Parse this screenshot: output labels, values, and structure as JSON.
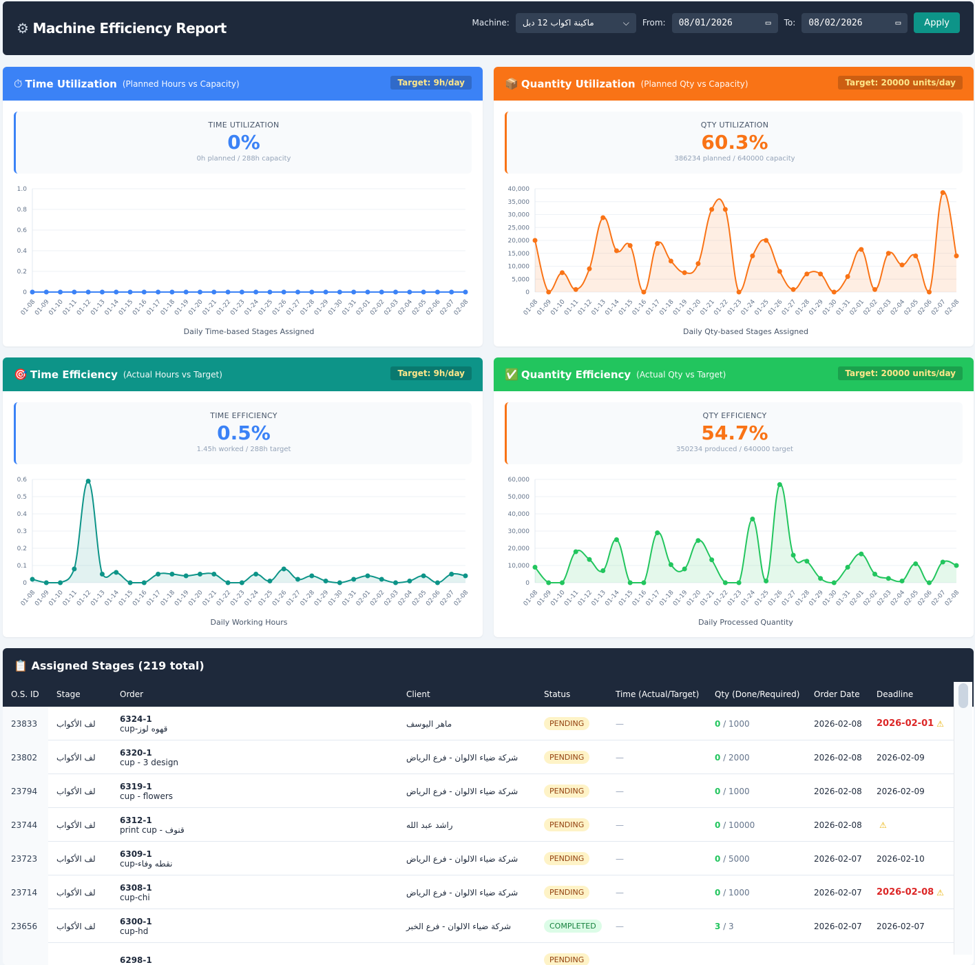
{
  "header": {
    "title": "Machine Efficiency Report",
    "icon": "gear-icon",
    "machine_label": "Machine:",
    "machine_value": "ماكينة اكواب 12 دبل",
    "from_label": "From:",
    "from_value": "08/01/2026",
    "to_label": "To:",
    "to_value": "08/02/2026",
    "apply_label": "Apply"
  },
  "cards": [
    {
      "title": "Time Utilization",
      "subtitle": "(Planned Hours vs Capacity)",
      "target": "Target: 9h/day",
      "color": "#3b82f6",
      "stat_label": "TIME UTILIZATION",
      "stat_value": "0%",
      "stat_detail": "0h planned / 288h capacity",
      "icon": "stopwatch-icon"
    },
    {
      "title": "Quantity Utilization",
      "subtitle": "(Planned Qty vs Capacity)",
      "target": "Target: 20000 units/day",
      "color": "#f97316",
      "stat_label": "QTY UTILIZATION",
      "stat_value": "60.3%",
      "stat_detail": "386234 planned / 640000 capacity",
      "icon": "package-icon"
    },
    {
      "title": "Time Efficiency",
      "subtitle": "(Actual Hours vs Target)",
      "target": "Target: 9h/day",
      "color": "#0d9488",
      "stat_label": "TIME EFFICIENCY",
      "stat_value": "0.5%",
      "stat_detail": "1.45h worked / 288h target",
      "icon": "target-icon"
    },
    {
      "title": "Quantity Efficiency",
      "subtitle": "(Actual Qty vs Target)",
      "target": "Target: 20000 units/day",
      "color": "#22c55e",
      "stat_label": "QTY EFFICIENCY",
      "stat_value": "54.7%",
      "stat_detail": "350234 produced / 640000 target",
      "icon": "check-icon"
    }
  ],
  "chart_data": [
    {
      "type": "line",
      "xlabel": "Daily Time-based Stages Assigned",
      "color": "#3b82f6",
      "ylim": [
        0,
        1
      ],
      "yticks": [
        0,
        0.2,
        0.4,
        0.6,
        0.8,
        1.0
      ],
      "ytick_labels": [
        "0",
        "0.2",
        "0.4",
        "0.6",
        "0.8",
        "1.0"
      ],
      "grid": true,
      "x": [
        "01-08",
        "01-09",
        "01-10",
        "01-11",
        "01-12",
        "01-13",
        "01-14",
        "01-15",
        "01-16",
        "01-17",
        "01-18",
        "01-19",
        "01-20",
        "01-21",
        "01-22",
        "01-23",
        "01-24",
        "01-25",
        "01-26",
        "01-27",
        "01-28",
        "01-29",
        "01-30",
        "01-31",
        "02-01",
        "02-02",
        "02-03",
        "02-04",
        "02-05",
        "02-06",
        "02-07",
        "02-08"
      ],
      "values": [
        0,
        0,
        0,
        0,
        0,
        0,
        0,
        0,
        0,
        0,
        0,
        0,
        0,
        0,
        0,
        0,
        0,
        0,
        0,
        0,
        0,
        0,
        0,
        0,
        0,
        0,
        0,
        0,
        0,
        0,
        0,
        0
      ]
    },
    {
      "type": "area",
      "xlabel": "Daily Qty-based Stages Assigned",
      "color": "#f97316",
      "ylim": [
        0,
        40000
      ],
      "yticks": [
        0,
        5000,
        10000,
        15000,
        20000,
        25000,
        30000,
        35000,
        40000
      ],
      "ytick_labels": [
        "0",
        "5,000",
        "10,000",
        "15,000",
        "20,000",
        "25,000",
        "30,000",
        "35,000",
        "40,000"
      ],
      "grid": true,
      "x": [
        "01-08",
        "01-09",
        "01-10",
        "01-11",
        "01-12",
        "01-13",
        "01-14",
        "01-15",
        "01-16",
        "01-17",
        "01-18",
        "01-19",
        "01-20",
        "01-21",
        "01-22",
        "01-23",
        "01-24",
        "01-25",
        "01-26",
        "01-27",
        "01-28",
        "01-29",
        "01-30",
        "01-31",
        "02-01",
        "02-02",
        "02-03",
        "02-04",
        "02-05",
        "02-06",
        "02-07",
        "02-08"
      ],
      "values": [
        20000,
        0,
        7500,
        1000,
        9000,
        28800,
        16000,
        18000,
        0,
        18800,
        12000,
        7500,
        11000,
        32000,
        32000,
        0,
        14000,
        20000,
        8000,
        1000,
        7000,
        7000,
        0,
        6000,
        16500,
        1000,
        15000,
        10500,
        14000,
        0,
        38500,
        14000
      ]
    },
    {
      "type": "area",
      "xlabel": "Daily Working Hours",
      "color": "#0d9488",
      "ylim": [
        0,
        0.6
      ],
      "yticks": [
        0,
        0.1,
        0.2,
        0.3,
        0.4,
        0.5,
        0.6
      ],
      "ytick_labels": [
        "0",
        "0.1",
        "0.2",
        "0.3",
        "0.4",
        "0.5",
        "0.6"
      ],
      "grid": true,
      "x": [
        "01-08",
        "01-09",
        "01-10",
        "01-11",
        "01-12",
        "01-13",
        "01-14",
        "01-15",
        "01-16",
        "01-17",
        "01-18",
        "01-19",
        "01-20",
        "01-21",
        "01-22",
        "01-23",
        "01-24",
        "01-25",
        "01-26",
        "01-27",
        "01-28",
        "01-29",
        "01-30",
        "01-31",
        "02-01",
        "02-02",
        "02-03",
        "02-04",
        "02-05",
        "02-06",
        "02-07",
        "02-08"
      ],
      "values": [
        0.02,
        0,
        0,
        0.08,
        0.59,
        0.05,
        0.06,
        0,
        0,
        0.05,
        0.05,
        0.04,
        0.05,
        0.05,
        0,
        0,
        0.05,
        0.01,
        0.08,
        0.02,
        0.04,
        0.01,
        0,
        0.02,
        0.04,
        0.02,
        0,
        0.01,
        0.04,
        0,
        0.05,
        0.04
      ]
    },
    {
      "type": "area",
      "xlabel": "Daily Processed Quantity",
      "color": "#22c55e",
      "ylim": [
        0,
        60000
      ],
      "yticks": [
        0,
        10000,
        20000,
        30000,
        40000,
        50000,
        60000
      ],
      "ytick_labels": [
        "0",
        "10,000",
        "20,000",
        "30,000",
        "40,000",
        "50,000",
        "60,000"
      ],
      "grid": true,
      "x": [
        "01-08",
        "01-09",
        "01-10",
        "01-11",
        "01-12",
        "01-13",
        "01-14",
        "01-15",
        "01-16",
        "01-17",
        "01-18",
        "01-19",
        "01-20",
        "01-21",
        "01-22",
        "01-23",
        "01-24",
        "01-25",
        "01-26",
        "01-27",
        "01-28",
        "01-29",
        "01-30",
        "01-31",
        "02-01",
        "02-02",
        "02-03",
        "02-04",
        "02-05",
        "02-06",
        "02-07",
        "02-08"
      ],
      "values": [
        9000,
        0,
        0,
        18000,
        13500,
        7000,
        25000,
        0,
        0,
        29000,
        10500,
        8000,
        24500,
        13300,
        0,
        0,
        37000,
        1000,
        57000,
        16000,
        12500,
        2500,
        0,
        9000,
        16700,
        5000,
        2500,
        1000,
        11000,
        0,
        12000,
        10000
      ]
    }
  ],
  "table": {
    "title": "Assigned Stages (219 total)",
    "icon": "clipboard-icon",
    "columns": [
      "O.S. ID",
      "Stage",
      "Order",
      "Client",
      "Status",
      "Time (Actual/Target)",
      "Qty (Done/Required)",
      "Order Date",
      "Deadline"
    ],
    "rows": [
      {
        "id": "23833",
        "stage": "لف الأكواب",
        "order": "6324-1",
        "order_desc": "cup-قهوه لوز",
        "client": "ماهر اليوسف",
        "status": "PENDING",
        "time": "—",
        "done": "0",
        "required": "/ 1000",
        "order_date": "2026-02-08",
        "deadline": "2026-02-01",
        "overdue": true,
        "warn": true
      },
      {
        "id": "23802",
        "stage": "لف الأكواب",
        "order": "6320-1",
        "order_desc": "cup - 3 design",
        "client": "شركة ضياء الالوان - فرع الرياض",
        "status": "PENDING",
        "time": "—",
        "done": "0",
        "required": "/ 2000",
        "order_date": "2026-02-08",
        "deadline": "2026-02-09",
        "overdue": false,
        "warn": false
      },
      {
        "id": "23794",
        "stage": "لف الأكواب",
        "order": "6319-1",
        "order_desc": "cup - flowers",
        "client": "شركة ضياء الالوان - فرع الرياض",
        "status": "PENDING",
        "time": "—",
        "done": "0",
        "required": "/ 1000",
        "order_date": "2026-02-08",
        "deadline": "2026-02-09",
        "overdue": false,
        "warn": false
      },
      {
        "id": "23744",
        "stage": "لف الأكواب",
        "order": "6312-1",
        "order_desc": "print cup - قنوف",
        "client": "راشد عبد الله",
        "status": "PENDING",
        "time": "—",
        "done": "0",
        "required": "/ 10000",
        "order_date": "2026-02-08",
        "deadline": "",
        "overdue": false,
        "warn": true
      },
      {
        "id": "23723",
        "stage": "لف الأكواب",
        "order": "6309-1",
        "order_desc": "cup-نقطه وفاء",
        "client": "شركة ضياء الالوان - فرع الرياض",
        "status": "PENDING",
        "time": "—",
        "done": "0",
        "required": "/ 5000",
        "order_date": "2026-02-07",
        "deadline": "2026-02-10",
        "overdue": false,
        "warn": false
      },
      {
        "id": "23714",
        "stage": "لف الأكواب",
        "order": "6308-1",
        "order_desc": "cup-chi",
        "client": "شركة ضياء الالوان - فرع الرياض",
        "status": "PENDING",
        "time": "—",
        "done": "0",
        "required": "/ 1000",
        "order_date": "2026-02-07",
        "deadline": "2026-02-08",
        "overdue": true,
        "warn": true
      },
      {
        "id": "23656",
        "stage": "لف الأكواب",
        "order": "6300-1",
        "order_desc": "cup-hd",
        "client": "شركة ضياء الالوان - فرع الخبر",
        "status": "COMPLETED",
        "time": "—",
        "done": "3",
        "required": "/ 3",
        "order_date": "2026-02-07",
        "deadline": "2026-02-07",
        "overdue": false,
        "warn": false
      },
      {
        "id": "",
        "stage": "",
        "order": "6298-1",
        "order_desc": "",
        "client": "",
        "status": "PENDING",
        "time": "",
        "done": "",
        "required": "",
        "order_date": "",
        "deadline": "",
        "overdue": false,
        "warn": false
      }
    ]
  }
}
